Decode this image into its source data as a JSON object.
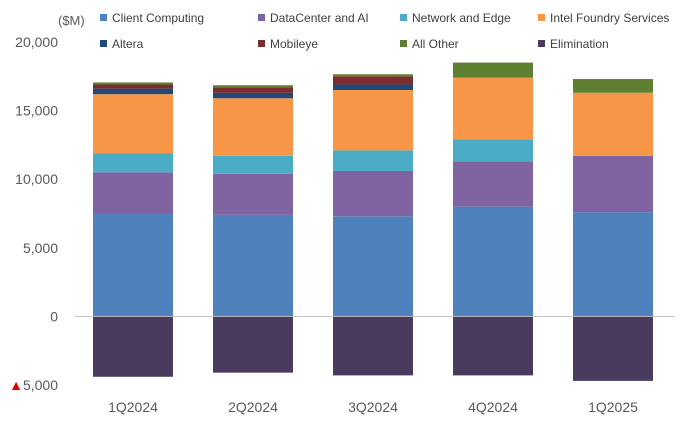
{
  "chart_data": {
    "type": "bar",
    "stacked": true,
    "unit_label": "($M)",
    "categories": [
      "1Q2024",
      "2Q2024",
      "3Q2024",
      "4Q2024",
      "1Q2025"
    ],
    "y_ticks": [
      {
        "value": 20000,
        "label": "20,000"
      },
      {
        "value": 15000,
        "label": "15,000"
      },
      {
        "value": 10000,
        "label": "10,000"
      },
      {
        "value": 5000,
        "label": "5,000"
      },
      {
        "value": 0,
        "label": "0"
      },
      {
        "value": -5000,
        "label": "5,000",
        "marker": "▲"
      }
    ],
    "ylim": [
      -5000,
      20000
    ],
    "grid": false,
    "legend_position": "top",
    "series": [
      {
        "name": "Client Computing",
        "color": "#4F81BD",
        "values": [
          7500,
          7400,
          7300,
          8000,
          7600
        ]
      },
      {
        "name": "DataCenter and AI",
        "color": "#8064A2",
        "values": [
          3000,
          3000,
          3300,
          3300,
          4100
        ]
      },
      {
        "name": "Network and Edge",
        "color": "#4BACC6",
        "values": [
          1400,
          1300,
          1500,
          1600,
          0
        ]
      },
      {
        "name": "Intel Foundry Services",
        "color": "#F79646",
        "values": [
          4300,
          4200,
          4400,
          4500,
          4600
        ]
      },
      {
        "name": "Altera",
        "color": "#1F497D",
        "values": [
          400,
          400,
          400,
          0,
          0
        ]
      },
      {
        "name": "Mobileye",
        "color": "#7B2C2C",
        "values": [
          300,
          400,
          600,
          0,
          0
        ]
      },
      {
        "name": "All Other",
        "color": "#5F7F33",
        "values": [
          150,
          150,
          150,
          1100,
          1000
        ]
      },
      {
        "name": "Elimination",
        "color": "#4A3B5E",
        "values": [
          -4400,
          -4100,
          -4300,
          -4300,
          -4700
        ]
      }
    ]
  }
}
